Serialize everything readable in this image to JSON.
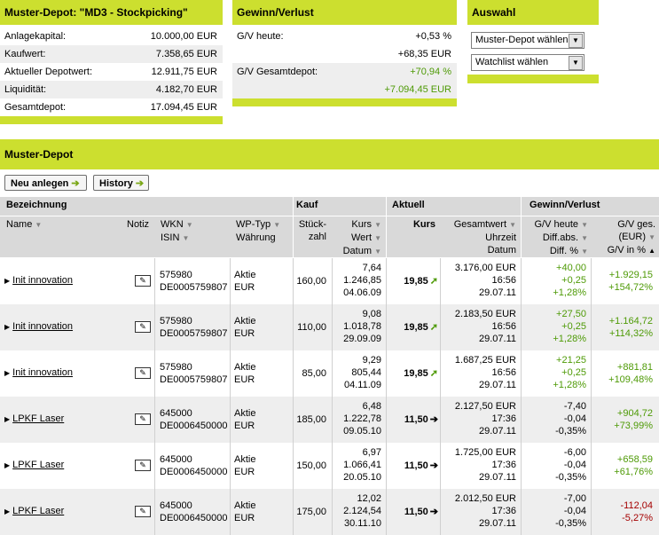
{
  "depot_box": {
    "title": "Muster-Depot: \"MD3 - Stockpicking\"",
    "rows": [
      {
        "label": "Anlagekapital:",
        "value": "10.000,00 EUR"
      },
      {
        "label": "Kaufwert:",
        "value": "7.358,65 EUR"
      },
      {
        "label": "Aktueller Depotwert:",
        "value": "12.911,75 EUR"
      },
      {
        "label": "Liquidität:",
        "value": "4.182,70 EUR"
      },
      {
        "label": "Gesamtdepot:",
        "value": "17.094,45 EUR"
      }
    ]
  },
  "gv_box": {
    "title": "Gewinn/Verlust",
    "today_label": "G/V heute:",
    "today_pct": "+0,53 %",
    "today_abs": "+68,35 EUR",
    "total_label": "G/V Gesamtdepot:",
    "total_pct": "+70,94 %",
    "total_abs": "+7.094,45 EUR"
  },
  "auswahl": {
    "title": "Auswahl",
    "select1": "Muster-Depot wählen",
    "select2": "Watchlist wählen"
  },
  "section_title": "Muster-Depot",
  "buttons": {
    "new": "Neu anlegen",
    "history": "History"
  },
  "headers": {
    "bezeichnung": "Bezeichnung",
    "kauf": "Kauf",
    "aktuell": "Aktuell",
    "gv": "Gewinn/Verlust",
    "name": "Name",
    "notiz": "Notiz",
    "wkn": "WKN",
    "isin": "ISIN",
    "wptyp": "WP-Typ",
    "waehrung": "Währung",
    "stueck1": "Stück-",
    "stueck2": "zahl",
    "kurs": "Kurs",
    "wert": "Wert",
    "datum": "Datum",
    "akurs": "Kurs",
    "gesamtwert": "Gesamtwert",
    "uhrzeit": "Uhrzeit",
    "adatum": "Datum",
    "gvheute": "G/V heute",
    "diffabs": "Diff.abs.",
    "diffpct": "Diff. %",
    "gvges": "G/V ges.",
    "eur": "(EUR)",
    "gvpct": "G/V in %"
  },
  "rows": [
    {
      "name": "Init innovation",
      "wkn": "575980",
      "isin": "DE0005759807",
      "typ": "Aktie",
      "cur": "EUR",
      "stk": "160,00",
      "kkurs": "7,64",
      "kwert": "1.246,85",
      "kdatum": "04.06.09",
      "akurs": "19,85",
      "trend": "up",
      "gwert": "3.176,00 EUR",
      "zeit": "16:56",
      "adatum": "29.07.11",
      "gvh": "+40,00",
      "dabs": "+0,25",
      "dpct": "+1,28%",
      "hsign": "pos",
      "gges": "+1.929,15",
      "gpct": "+154,72%",
      "gsign": "pos"
    },
    {
      "name": "Init innovation",
      "wkn": "575980",
      "isin": "DE0005759807",
      "typ": "Aktie",
      "cur": "EUR",
      "stk": "110,00",
      "kkurs": "9,08",
      "kwert": "1.018,78",
      "kdatum": "29.09.09",
      "akurs": "19,85",
      "trend": "up",
      "gwert": "2.183,50 EUR",
      "zeit": "16:56",
      "adatum": "29.07.11",
      "gvh": "+27,50",
      "dabs": "+0,25",
      "dpct": "+1,28%",
      "hsign": "pos",
      "gges": "+1.164,72",
      "gpct": "+114,32%",
      "gsign": "pos"
    },
    {
      "name": "Init innovation",
      "wkn": "575980",
      "isin": "DE0005759807",
      "typ": "Aktie",
      "cur": "EUR",
      "stk": "85,00",
      "kkurs": "9,29",
      "kwert": "805,44",
      "kdatum": "04.11.09",
      "akurs": "19,85",
      "trend": "up",
      "gwert": "1.687,25 EUR",
      "zeit": "16:56",
      "adatum": "29.07.11",
      "gvh": "+21,25",
      "dabs": "+0,25",
      "dpct": "+1,28%",
      "hsign": "pos",
      "gges": "+881,81",
      "gpct": "+109,48%",
      "gsign": "pos"
    },
    {
      "name": "LPKF Laser",
      "wkn": "645000",
      "isin": "DE0006450000",
      "typ": "Aktie",
      "cur": "EUR",
      "stk": "185,00",
      "kkurs": "6,48",
      "kwert": "1.222,78",
      "kdatum": "09.05.10",
      "akurs": "11,50",
      "trend": "right",
      "gwert": "2.127,50 EUR",
      "zeit": "17:36",
      "adatum": "29.07.11",
      "gvh": "-7,40",
      "dabs": "-0,04",
      "dpct": "-0,35%",
      "hsign": "plain",
      "gges": "+904,72",
      "gpct": "+73,99%",
      "gsign": "pos"
    },
    {
      "name": "LPKF Laser",
      "wkn": "645000",
      "isin": "DE0006450000",
      "typ": "Aktie",
      "cur": "EUR",
      "stk": "150,00",
      "kkurs": "6,97",
      "kwert": "1.066,41",
      "kdatum": "20.05.10",
      "akurs": "11,50",
      "trend": "right",
      "gwert": "1.725,00 EUR",
      "zeit": "17:36",
      "adatum": "29.07.11",
      "gvh": "-6,00",
      "dabs": "-0,04",
      "dpct": "-0,35%",
      "hsign": "plain",
      "gges": "+658,59",
      "gpct": "+61,76%",
      "gsign": "pos"
    },
    {
      "name": "LPKF Laser",
      "wkn": "645000",
      "isin": "DE0006450000",
      "typ": "Aktie",
      "cur": "EUR",
      "stk": "175,00",
      "kkurs": "12,02",
      "kwert": "2.124,54",
      "kdatum": "30.11.10",
      "akurs": "11,50",
      "trend": "right",
      "gwert": "2.012,50 EUR",
      "zeit": "17:36",
      "adatum": "29.07.11",
      "gvh": "-7,00",
      "dabs": "-0,04",
      "dpct": "-0,35%",
      "hsign": "plain",
      "gges": "-112,04",
      "gpct": "-5,27%",
      "gsign": "neg"
    }
  ]
}
